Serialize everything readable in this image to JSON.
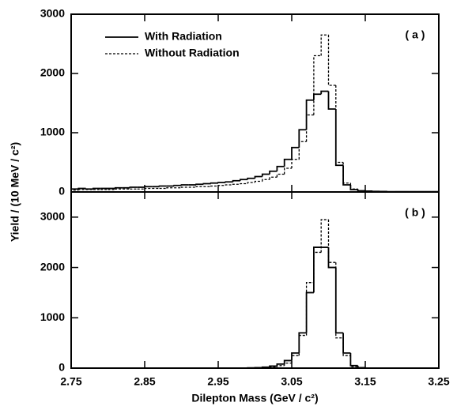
{
  "chart_data": [
    {
      "type": "histogram",
      "label": "( a )",
      "ylabel": "Yield / (10 MeV / c²)",
      "bins": [
        2.75,
        2.76,
        2.77,
        2.78,
        2.79,
        2.8,
        2.81,
        2.82,
        2.83,
        2.84,
        2.85,
        2.86,
        2.87,
        2.88,
        2.89,
        2.9,
        2.91,
        2.92,
        2.93,
        2.94,
        2.95,
        2.96,
        2.97,
        2.98,
        2.99,
        3.0,
        3.01,
        3.02,
        3.03,
        3.04,
        3.05,
        3.06,
        3.07,
        3.08,
        3.09,
        3.1,
        3.11,
        3.12,
        3.13,
        3.14,
        3.15,
        3.16,
        3.17,
        3.18,
        3.19,
        3.2,
        3.21,
        3.22,
        3.23,
        3.24,
        3.25
      ],
      "series": [
        {
          "name": "With  Radiation",
          "color": "#000000",
          "line_style": "solid",
          "values": [
            50,
            60,
            50,
            60,
            60,
            60,
            70,
            70,
            80,
            80,
            90,
            90,
            100,
            100,
            110,
            120,
            120,
            130,
            140,
            150,
            160,
            170,
            190,
            210,
            230,
            260,
            300,
            350,
            430,
            550,
            750,
            1050,
            1550,
            1650,
            1700,
            1400,
            450,
            120,
            40,
            20,
            15,
            10,
            8,
            5,
            5,
            5,
            5,
            5,
            5,
            5
          ]
        },
        {
          "name": "Without  Radiation",
          "color": "#000000",
          "line_style": "dashed",
          "values": [
            30,
            40,
            40,
            40,
            40,
            40,
            50,
            50,
            50,
            50,
            60,
            60,
            60,
            70,
            70,
            80,
            80,
            90,
            90,
            100,
            110,
            120,
            130,
            140,
            160,
            180,
            210,
            250,
            300,
            400,
            550,
            850,
            1300,
            2300,
            2650,
            1800,
            500,
            150,
            50,
            20,
            10,
            8,
            5,
            5,
            5,
            5,
            5,
            5,
            5,
            5
          ]
        }
      ],
      "xlim": [
        2.75,
        3.25
      ],
      "xticks": [
        2.75,
        2.85,
        2.95,
        3.05,
        3.15,
        3.25
      ],
      "ylim": [
        0,
        3000
      ],
      "yticks": [
        0,
        1000,
        2000,
        3000
      ]
    },
    {
      "type": "histogram",
      "label": "( b )",
      "xlabel": "Dilepton  Mass (GeV / c²)",
      "bins": [
        2.75,
        2.76,
        2.77,
        2.78,
        2.79,
        2.8,
        2.81,
        2.82,
        2.83,
        2.84,
        2.85,
        2.86,
        2.87,
        2.88,
        2.89,
        2.9,
        2.91,
        2.92,
        2.93,
        2.94,
        2.95,
        2.96,
        2.97,
        2.98,
        2.99,
        3.0,
        3.01,
        3.02,
        3.03,
        3.04,
        3.05,
        3.06,
        3.07,
        3.08,
        3.09,
        3.1,
        3.11,
        3.12,
        3.13,
        3.14,
        3.15,
        3.16,
        3.17,
        3.18,
        3.19,
        3.2,
        3.21,
        3.22,
        3.23,
        3.24,
        3.25
      ],
      "series": [
        {
          "color": "#000000",
          "line_style": "solid",
          "values": [
            0,
            0,
            0,
            0,
            0,
            0,
            0,
            0,
            0,
            0,
            0,
            0,
            0,
            0,
            0,
            0,
            0,
            0,
            0,
            0,
            0,
            0,
            0,
            2,
            5,
            10,
            20,
            40,
            80,
            150,
            300,
            700,
            1500,
            2400,
            2400,
            2000,
            700,
            300,
            50,
            10,
            0,
            0,
            0,
            0,
            0,
            0,
            0,
            0,
            0,
            0
          ]
        },
        {
          "color": "#000000",
          "line_style": "dashed",
          "values": [
            0,
            0,
            0,
            0,
            0,
            0,
            0,
            0,
            0,
            0,
            0,
            0,
            0,
            0,
            0,
            0,
            0,
            0,
            0,
            0,
            0,
            0,
            0,
            0,
            2,
            5,
            10,
            20,
            50,
            100,
            250,
            650,
            1700,
            2300,
            2950,
            2100,
            600,
            250,
            30,
            5,
            0,
            0,
            0,
            0,
            0,
            0,
            0,
            0,
            0,
            0
          ]
        }
      ],
      "xlim": [
        2.75,
        3.25
      ],
      "xticks": [
        2.75,
        2.85,
        2.95,
        3.05,
        3.15,
        3.25
      ],
      "ylim": [
        0,
        3500
      ],
      "yticks": [
        0,
        1000,
        2000,
        3000
      ]
    }
  ]
}
